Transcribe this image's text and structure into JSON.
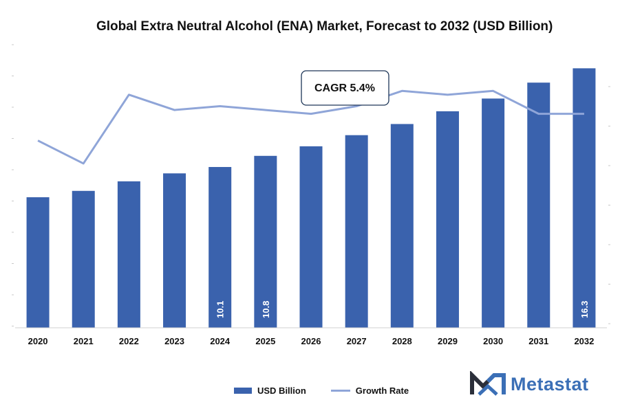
{
  "title": "Global Extra Neutral Alcohol (ENA) Market, Forecast to 2032 (USD Billion)",
  "annotation": {
    "cagr": "CAGR 5.4%"
  },
  "legend": {
    "bar": "USD Billion",
    "line": "Growth Rate"
  },
  "logo": {
    "text": "Metastat"
  },
  "colors": {
    "bar": "#3a62ad",
    "line": "#8fa5d8",
    "logo": "#3b6fb6"
  },
  "chart_data": {
    "type": "bar",
    "title": "Global Extra Neutral Alcohol (ENA) Market, Forecast to 2032 (USD Billion)",
    "categories": [
      "2020",
      "2021",
      "2022",
      "2023",
      "2024",
      "2025",
      "2026",
      "2027",
      "2028",
      "2029",
      "2030",
      "2031",
      "2032"
    ],
    "series": [
      {
        "name": "USD Billion",
        "type": "bar",
        "values": [
          8.2,
          8.6,
          9.2,
          9.7,
          10.1,
          10.8,
          11.4,
          12.1,
          12.8,
          13.6,
          14.4,
          15.4,
          16.3
        ],
        "labels": [
          "",
          "",
          "",
          "",
          "10.1",
          "10.8",
          "",
          "",
          "",
          "",
          "",
          "",
          "16.3"
        ]
      },
      {
        "name": "Growth Rate",
        "type": "line",
        "values": [
          4.9,
          4.3,
          6.1,
          5.7,
          5.8,
          5.7,
          5.6,
          5.8,
          6.2,
          6.1,
          6.2,
          5.6,
          5.6
        ]
      }
    ],
    "ylim": [
      0,
      18
    ],
    "y2lim": [
      0,
      7.5
    ],
    "legend_position": "bottom"
  }
}
